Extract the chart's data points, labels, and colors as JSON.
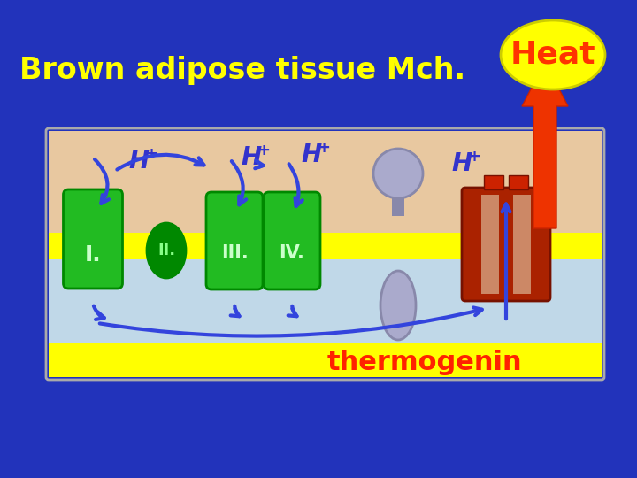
{
  "bg_color": "#2233bb",
  "title_text": "Brown adipose tissue Mch.",
  "title_color": "#ffff00",
  "title_fontsize": 24,
  "heat_text": "Heat",
  "heat_text_color": "#ff3300",
  "heat_ellipse_color": "#ffff00",
  "thermogenin_text": "thermogenin",
  "thermogenin_color": "#ff2200",
  "membrane_outer_color": "#e8c8a0",
  "membrane_yellow_color": "#ffff00",
  "membrane_inner_color": "#c0d8e8",
  "complex_green": "#22bb22",
  "complex_dark_green": "#008800",
  "complex_label_color": "#ccffcc",
  "hplus_color": "#3333cc",
  "arrow_color": "#2233bb",
  "thermo_color": "#aa2200",
  "thermo_light": "#cc8866",
  "gray_light": "#aaaacc",
  "gray_dark": "#8888aa"
}
